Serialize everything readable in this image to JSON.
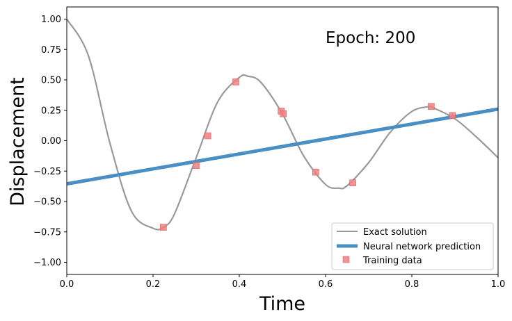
{
  "chart_data": {
    "type": "line",
    "title": "",
    "xlabel": "Time",
    "ylabel": "Displacement",
    "xlim": [
      0.0,
      1.0
    ],
    "ylim": [
      -1.1,
      1.1
    ],
    "grid": false,
    "legend_position": "bottom-right",
    "annotation": "Epoch: 200",
    "x_ticks": [
      "0.0",
      "0.2",
      "0.4",
      "0.6",
      "0.8",
      "1.0"
    ],
    "y_ticks": [
      "1.00",
      "0.75",
      "0.50",
      "0.25",
      "0.00",
      "−0.25",
      "−0.50",
      "−0.75",
      "−1.00"
    ],
    "series": [
      {
        "name": "Exact solution",
        "kind": "line",
        "color": "#999999",
        "x": [
          0.0,
          0.05,
          0.1,
          0.15,
          0.2,
          0.225,
          0.25,
          0.3,
          0.35,
          0.4,
          0.42,
          0.45,
          0.5,
          0.55,
          0.6,
          0.63,
          0.65,
          0.7,
          0.75,
          0.8,
          0.84,
          0.85,
          0.9,
          0.95,
          1.0
        ],
        "y": [
          1.0,
          0.7,
          -0.02,
          -0.58,
          -0.72,
          -0.71,
          -0.6,
          -0.14,
          0.32,
          0.52,
          0.53,
          0.48,
          0.22,
          -0.13,
          -0.36,
          -0.39,
          -0.37,
          -0.18,
          0.07,
          0.24,
          0.28,
          0.27,
          0.18,
          0.03,
          -0.14
        ]
      },
      {
        "name": "Neural network prediction",
        "kind": "line",
        "color": "#4a8fc4",
        "x": [
          0.0,
          1.0
        ],
        "y": [
          -0.355,
          0.26
        ]
      },
      {
        "name": "Training data",
        "kind": "scatter",
        "color": "#f08080",
        "x": [
          0.224,
          0.3,
          0.327,
          0.392,
          0.497,
          0.502,
          0.577,
          0.663,
          0.845,
          0.894
        ],
        "y": [
          -0.712,
          -0.204,
          0.04,
          0.483,
          0.243,
          0.222,
          -0.258,
          -0.347,
          0.282,
          0.207
        ]
      }
    ]
  }
}
